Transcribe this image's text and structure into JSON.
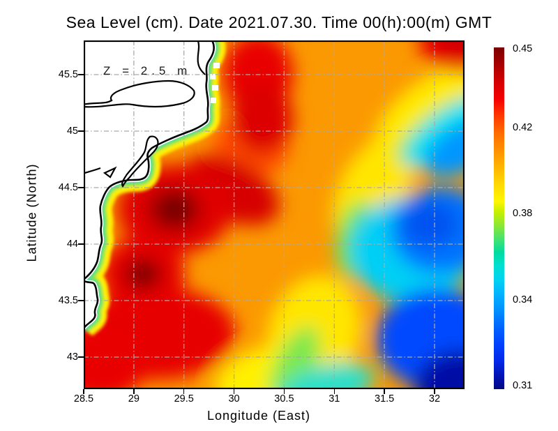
{
  "title": "Sea Level (cm). Date 2021.07.30. Time 00(h):00(m) GMT",
  "annotation": "Z = 2.5 m",
  "axes": {
    "x": {
      "label": "Longitude (East)",
      "ticks": [
        "28.5",
        "29",
        "29.5",
        "30",
        "30.5",
        "31",
        "31.5",
        "32"
      ]
    },
    "y": {
      "label": "Latitude (North)",
      "ticks": [
        "45.5",
        "45",
        "44.5",
        "44",
        "43.5",
        "43"
      ]
    }
  },
  "colorbar": {
    "ticks": [
      "0.45",
      "0.42",
      "0.38",
      "0.34",
      "0.31"
    ],
    "min": 0.31,
    "max": 0.45
  },
  "colors": {
    "background": "#ffffff",
    "land": "#ffffff",
    "coastline": "#000000",
    "grid": "#a9a9a9",
    "colormap_low": "#000882",
    "colormap_high": "#7a0000",
    "field_base_orange": "#fb9902",
    "maxima_dark_red": "#6f0000"
  },
  "chart_data": {
    "type": "heatmap",
    "title": "Sea Level (cm). Date 2021.07.30. Time 00(h):00(m) GMT",
    "xlabel": "Longitude (East)",
    "ylabel": "Latitude (North)",
    "annotation": "Z = 2.5 m",
    "x_range": [
      28.5,
      32.3
    ],
    "y_range": [
      42.7,
      45.8
    ],
    "grid": "dash-dot, every 0.5 degree",
    "colormap": "jet",
    "colorbar_range": [
      0.31,
      0.45
    ],
    "colorbar_ticks": [
      0.45,
      0.42,
      0.38,
      0.34,
      0.31
    ],
    "legend_position": "right colorbar",
    "lons": [
      28.6,
      29.0,
      29.4,
      29.8,
      30.2,
      30.6,
      31.0,
      31.4,
      31.8,
      32.2
    ],
    "lats": [
      45.6,
      45.3,
      45.0,
      44.7,
      44.4,
      44.1,
      43.8,
      43.5,
      43.2,
      42.9
    ],
    "values": [
      [
        null,
        null,
        null,
        0.43,
        0.44,
        0.425,
        0.415,
        0.415,
        0.425,
        0.435
      ],
      [
        null,
        null,
        null,
        0.435,
        0.445,
        0.425,
        0.415,
        0.41,
        0.405,
        0.39
      ],
      [
        null,
        null,
        0.4,
        0.44,
        0.44,
        0.42,
        0.41,
        0.4,
        0.38,
        0.36
      ],
      [
        null,
        0.385,
        0.42,
        0.445,
        0.43,
        0.415,
        0.405,
        0.39,
        0.37,
        0.355
      ],
      [
        null,
        0.39,
        0.45,
        0.435,
        0.42,
        0.41,
        0.4,
        0.385,
        0.36,
        0.35
      ],
      [
        null,
        0.385,
        0.43,
        0.43,
        0.42,
        0.408,
        0.395,
        0.378,
        0.358,
        0.342
      ],
      [
        null,
        0.445,
        0.435,
        0.425,
        0.415,
        0.405,
        0.388,
        0.368,
        0.348,
        0.332
      ],
      [
        0.4,
        0.435,
        0.43,
        0.425,
        0.41,
        0.4,
        0.383,
        0.362,
        0.342,
        0.325
      ],
      [
        0.425,
        0.43,
        0.425,
        0.415,
        0.405,
        0.392,
        0.373,
        0.352,
        0.332,
        0.315
      ],
      [
        0.415,
        0.42,
        0.41,
        0.395,
        0.385,
        0.37,
        0.355,
        0.338,
        0.32,
        0.31
      ]
    ],
    "null_cells": "land (masked white, coastline drawn in black)",
    "features": {
      "maxima": [
        {
          "lon": 29.35,
          "lat": 44.35,
          "value": 0.45
        },
        {
          "lon": 29.1,
          "lat": 43.8,
          "value": 0.45
        }
      ],
      "minimum": {
        "lon": 32.3,
        "lat": 42.75,
        "value": 0.31
      }
    }
  }
}
